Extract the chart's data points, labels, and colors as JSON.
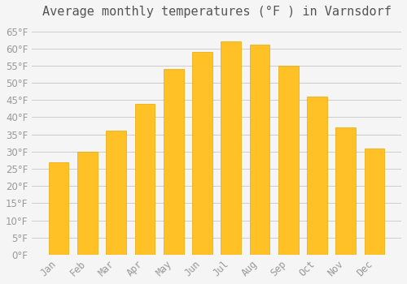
{
  "title": "Average monthly temperatures (°F ) in Varnsdorf",
  "months": [
    "Jan",
    "Feb",
    "Mar",
    "Apr",
    "May",
    "Jun",
    "Jul",
    "Aug",
    "Sep",
    "Oct",
    "Nov",
    "Dec"
  ],
  "values": [
    27,
    30,
    36,
    44,
    54,
    59,
    62,
    61,
    55,
    46,
    37,
    31
  ],
  "bar_color": "#FFC125",
  "bar_edge_color": "#E8A800",
  "background_color": "#F5F5F5",
  "grid_color": "#CCCCCC",
  "text_color": "#999999",
  "ylim": [
    0,
    67
  ],
  "yticks": [
    0,
    5,
    10,
    15,
    20,
    25,
    30,
    35,
    40,
    45,
    50,
    55,
    60,
    65
  ],
  "title_fontsize": 11,
  "tick_fontsize": 8.5
}
